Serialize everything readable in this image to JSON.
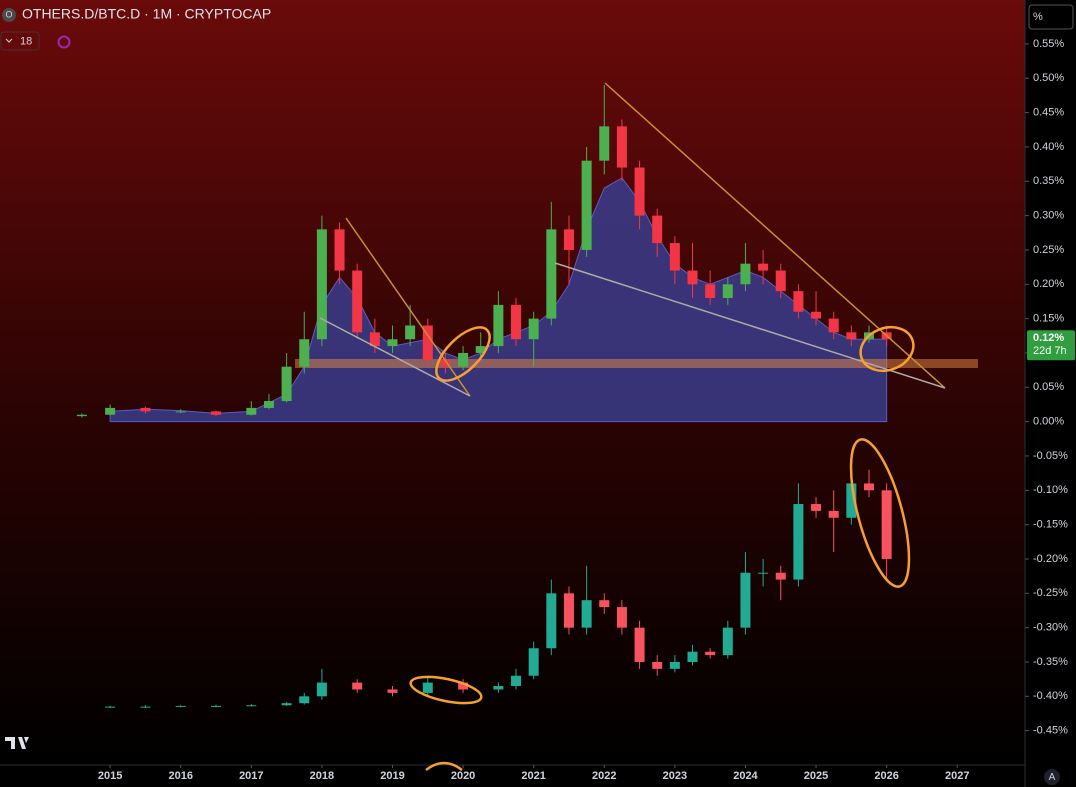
{
  "chart_data": {
    "type": "candlestick",
    "title": "OTHERS.D/BTC.D · 1M · CRYPTOCAP",
    "symbol_icon": "O",
    "interval_count": "18",
    "axis_unit": "%",
    "auto_button": "A",
    "last_price": {
      "value": 0.12,
      "label": "0.12%"
    },
    "countdown": "22d 7h",
    "xlim": [
      2013.44,
      2027.96
    ],
    "xticks": [
      2015,
      2016,
      2017,
      2018,
      2019,
      2020,
      2021,
      2022,
      2023,
      2024,
      2025,
      2026,
      2027
    ],
    "ylim": [
      -0.5,
      0.6
    ],
    "yticks": [
      {
        "value": 0.55,
        "label": "0.55%"
      },
      {
        "value": 0.5,
        "label": "0.50%"
      },
      {
        "value": 0.45,
        "label": "0.45%"
      },
      {
        "value": 0.4,
        "label": "0.40%"
      },
      {
        "value": 0.35,
        "label": "0.35%"
      },
      {
        "value": 0.3,
        "label": "0.30%"
      },
      {
        "value": 0.25,
        "label": "0.25%"
      },
      {
        "value": 0.2,
        "label": "0.20%"
      },
      {
        "value": 0.15,
        "label": "0.15%"
      },
      {
        "value": 0.1,
        "label": "0.10%"
      },
      {
        "value": 0.05,
        "label": "0.05%"
      },
      {
        "value": 0,
        "label": "0.00%"
      },
      {
        "value": -0.05,
        "label": "-0.05%"
      },
      {
        "value": -0.1,
        "label": "-0.10%"
      },
      {
        "value": -0.15,
        "label": "-0.15%"
      },
      {
        "value": -0.2,
        "label": "-0.20%"
      },
      {
        "value": -0.25,
        "label": "-0.25%"
      },
      {
        "value": -0.3,
        "label": "-0.30%"
      },
      {
        "value": -0.35,
        "label": "-0.35%"
      },
      {
        "value": -0.4,
        "label": "-0.40%"
      },
      {
        "value": -0.45,
        "label": "-0.45%"
      }
    ],
    "grid": false,
    "series": [
      {
        "type": "area",
        "color": "#3a3c8c",
        "x": [
          2015.0,
          2015.5,
          2016.0,
          2016.5,
          2017.0,
          2017.5,
          2017.75,
          2018.0,
          2018.25,
          2018.5,
          2018.75,
          2019.0,
          2019.5,
          2019.75,
          2020.0,
          2020.25,
          2020.5,
          2020.75,
          2021.0,
          2021.25,
          2021.5,
          2021.75,
          2022.0,
          2022.25,
          2022.5,
          2022.75,
          2023.0,
          2023.25,
          2023.5,
          2023.75,
          2024.0,
          2024.25,
          2024.5,
          2024.75,
          2025.0,
          2025.25,
          2025.5,
          2025.75,
          2026.0
        ],
        "values": [
          0.015,
          0.018,
          0.016,
          0.012,
          0.015,
          0.04,
          0.08,
          0.17,
          0.21,
          0.18,
          0.13,
          0.11,
          0.12,
          0.1,
          0.09,
          0.1,
          0.12,
          0.13,
          0.14,
          0.16,
          0.2,
          0.28,
          0.34,
          0.355,
          0.32,
          0.27,
          0.23,
          0.21,
          0.2,
          0.21,
          0.22,
          0.21,
          0.19,
          0.17,
          0.15,
          0.13,
          0.12,
          0.12,
          0.12
        ]
      },
      {
        "type": "candlestick",
        "up_color": "#4caf50",
        "down_color": "#f23645",
        "x": [
          2014.6,
          2015.0,
          2015.5,
          2016.0,
          2016.5,
          2017.0,
          2017.25,
          2017.5,
          2017.75,
          2018.0,
          2018.25,
          2018.5,
          2018.75,
          2019.0,
          2019.25,
          2019.5,
          2019.75,
          2020.0,
          2020.25,
          2020.5,
          2020.75,
          2021.0,
          2021.25,
          2021.5,
          2021.75,
          2022.0,
          2022.25,
          2022.5,
          2022.75,
          2023.0,
          2023.25,
          2023.5,
          2023.75,
          2024.0,
          2024.25,
          2024.5,
          2024.75,
          2025.0,
          2025.25,
          2025.5,
          2025.75,
          2026.0
        ],
        "open": [
          0.008,
          0.01,
          0.02,
          0.015,
          0.015,
          0.01,
          0.02,
          0.03,
          0.08,
          0.12,
          0.28,
          0.22,
          0.13,
          0.11,
          0.12,
          0.14,
          0.09,
          0.08,
          0.1,
          0.11,
          0.17,
          0.12,
          0.15,
          0.28,
          0.25,
          0.38,
          0.43,
          0.37,
          0.3,
          0.26,
          0.22,
          0.2,
          0.18,
          0.2,
          0.23,
          0.22,
          0.19,
          0.16,
          0.15,
          0.13,
          0.12,
          0.13
        ],
        "high": [
          0.012,
          0.025,
          0.022,
          0.018,
          0.016,
          0.03,
          0.04,
          0.1,
          0.16,
          0.3,
          0.29,
          0.23,
          0.15,
          0.14,
          0.17,
          0.15,
          0.1,
          0.11,
          0.13,
          0.19,
          0.18,
          0.16,
          0.32,
          0.3,
          0.4,
          0.49,
          0.44,
          0.38,
          0.31,
          0.27,
          0.26,
          0.22,
          0.21,
          0.26,
          0.25,
          0.23,
          0.2,
          0.19,
          0.16,
          0.14,
          0.14,
          0.14
        ],
        "low": [
          0.006,
          0.009,
          0.012,
          0.012,
          0.008,
          0.009,
          0.018,
          0.028,
          0.07,
          0.11,
          0.2,
          0.12,
          0.1,
          0.1,
          0.11,
          0.08,
          0.07,
          0.075,
          0.09,
          0.1,
          0.11,
          0.08,
          0.14,
          0.2,
          0.24,
          0.36,
          0.35,
          0.28,
          0.24,
          0.2,
          0.18,
          0.17,
          0.17,
          0.19,
          0.2,
          0.18,
          0.15,
          0.14,
          0.12,
          0.11,
          0.115,
          0.11
        ],
        "close": [
          0.01,
          0.02,
          0.015,
          0.015,
          0.01,
          0.02,
          0.03,
          0.08,
          0.12,
          0.28,
          0.22,
          0.13,
          0.11,
          0.12,
          0.14,
          0.09,
          0.08,
          0.1,
          0.11,
          0.17,
          0.12,
          0.15,
          0.28,
          0.25,
          0.38,
          0.43,
          0.37,
          0.3,
          0.26,
          0.22,
          0.2,
          0.18,
          0.2,
          0.23,
          0.22,
          0.19,
          0.16,
          0.15,
          0.13,
          0.12,
          0.13,
          0.12
        ]
      },
      {
        "type": "candlestick",
        "up_color": "#22ab94",
        "down_color": "#f7525f",
        "x": [
          2015.0,
          2015.5,
          2016.0,
          2016.5,
          2017.0,
          2017.5,
          2017.75,
          2018.0,
          2018.5,
          2019.0,
          2019.5,
          2020.0,
          2020.5,
          2020.75,
          2021.0,
          2021.25,
          2021.5,
          2021.75,
          2022.0,
          2022.25,
          2022.5,
          2022.75,
          2023.0,
          2023.25,
          2023.5,
          2023.75,
          2024.0,
          2024.25,
          2024.5,
          2024.75,
          2025.0,
          2025.25,
          2025.5,
          2025.75,
          2026.0
        ],
        "open": [
          -0.416,
          -0.415,
          -0.415,
          -0.414,
          -0.414,
          -0.413,
          -0.41,
          -0.4,
          -0.38,
          -0.39,
          -0.395,
          -0.38,
          -0.39,
          -0.385,
          -0.37,
          -0.33,
          -0.25,
          -0.3,
          -0.26,
          -0.27,
          -0.3,
          -0.35,
          -0.36,
          -0.35,
          -0.335,
          -0.34,
          -0.3,
          -0.22,
          -0.22,
          -0.23,
          -0.12,
          -0.13,
          -0.14,
          -0.09,
          -0.1
        ],
        "high": [
          -0.414,
          -0.413,
          -0.413,
          -0.412,
          -0.411,
          -0.408,
          -0.395,
          -0.36,
          -0.375,
          -0.385,
          -0.37,
          -0.375,
          -0.38,
          -0.36,
          -0.32,
          -0.23,
          -0.24,
          -0.21,
          -0.25,
          -0.26,
          -0.29,
          -0.34,
          -0.34,
          -0.325,
          -0.33,
          -0.29,
          -0.19,
          -0.2,
          -0.21,
          -0.09,
          -0.11,
          -0.1,
          -0.06,
          -0.07,
          -0.09
        ],
        "low": [
          -0.417,
          -0.417,
          -0.416,
          -0.416,
          -0.415,
          -0.414,
          -0.412,
          -0.405,
          -0.395,
          -0.4,
          -0.4,
          -0.395,
          -0.395,
          -0.39,
          -0.375,
          -0.34,
          -0.31,
          -0.31,
          -0.28,
          -0.31,
          -0.36,
          -0.37,
          -0.365,
          -0.355,
          -0.345,
          -0.345,
          -0.31,
          -0.24,
          -0.26,
          -0.24,
          -0.14,
          -0.19,
          -0.15,
          -0.11,
          -0.23
        ],
        "close": [
          -0.415,
          -0.415,
          -0.414,
          -0.414,
          -0.413,
          -0.41,
          -0.4,
          -0.38,
          -0.39,
          -0.395,
          -0.38,
          -0.39,
          -0.385,
          -0.37,
          -0.33,
          -0.25,
          -0.3,
          -0.26,
          -0.27,
          -0.3,
          -0.35,
          -0.36,
          -0.35,
          -0.335,
          -0.34,
          -0.3,
          -0.22,
          -0.22,
          -0.23,
          -0.12,
          -0.13,
          -0.14,
          -0.09,
          -0.1,
          -0.2
        ]
      }
    ]
  }
}
